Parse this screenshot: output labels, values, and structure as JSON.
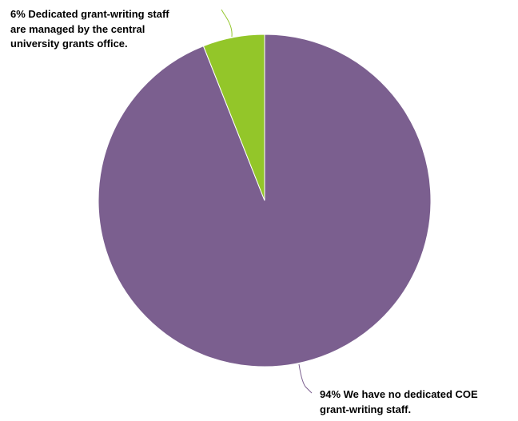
{
  "chart_data": {
    "type": "pie",
    "slices": [
      {
        "value": 94,
        "label_lines": [
          "94% We have no dedicated COE",
          "grant-writing staff."
        ],
        "color": "#7B5F8F"
      },
      {
        "value": 6,
        "label_lines": [
          "6% Dedicated grant-writing staff",
          "are managed by the central",
          "university grants office."
        ],
        "color": "#93C629"
      }
    ],
    "start_angle_deg": 0,
    "direction": "clockwise",
    "legend": "none",
    "leader_line_color": "#93C629"
  }
}
